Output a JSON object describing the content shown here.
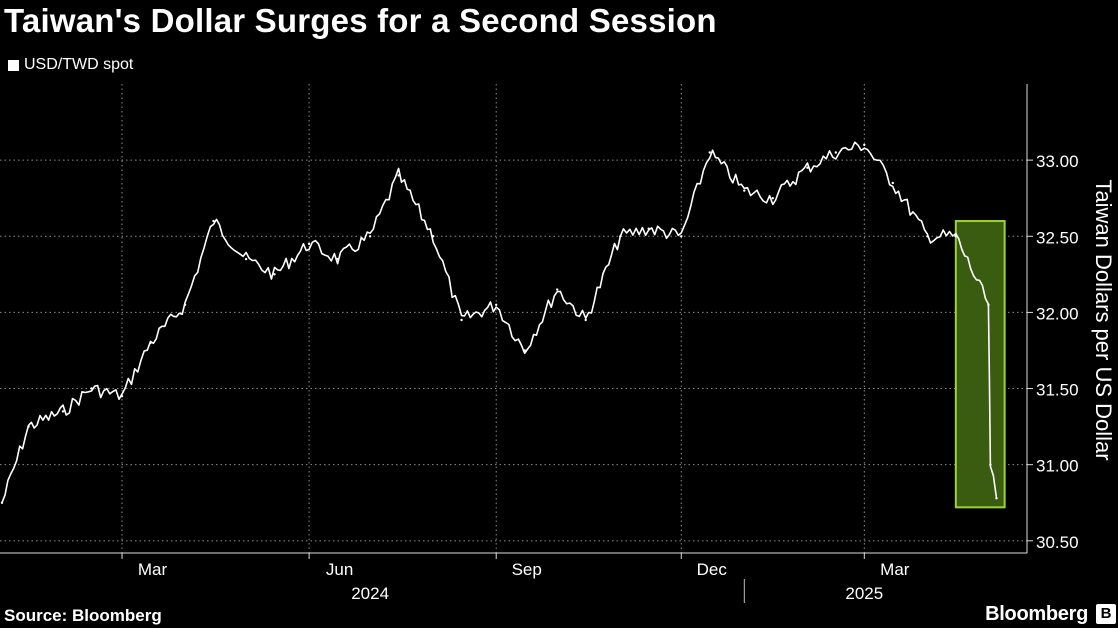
{
  "title": "Taiwan's Dollar Surges for a Second Session",
  "legend_label": "USD/TWD spot",
  "source": "Source: Bloomberg",
  "brand": "Bloomberg",
  "brand_mark": "B",
  "colors": {
    "background": "#000000",
    "series": "#ffffff",
    "grid": "#8c8c8c",
    "highlight_fill": "#3a5c10",
    "highlight_stroke": "#9bd337"
  },
  "chart_data": {
    "type": "line",
    "title": "Taiwan's Dollar Surges for a Second Session",
    "ylabel": "Taiwan Dollars per US Dollar",
    "ylim": [
      30.42,
      33.5
    ],
    "yticks": [
      "30.50",
      "31.00",
      "31.50",
      "32.00",
      "32.50",
      "33.00"
    ],
    "xtick_labels": [
      "Mar",
      "Jun",
      "Sep",
      "Dec",
      "Mar"
    ],
    "year_labels": [
      "2024",
      "2025"
    ],
    "grid": true,
    "legend_position": "top-left",
    "series": [
      {
        "name": "USD/TWD spot",
        "x": [
          "2024-01-02",
          "2024-01-15",
          "2024-02-01",
          "2024-02-15",
          "2024-03-01",
          "2024-03-15",
          "2024-04-01",
          "2024-04-15",
          "2024-05-01",
          "2024-05-15",
          "2024-06-01",
          "2024-06-15",
          "2024-07-01",
          "2024-07-15",
          "2024-08-01",
          "2024-08-15",
          "2024-09-01",
          "2024-09-15",
          "2024-10-01",
          "2024-10-15",
          "2024-11-01",
          "2024-11-15",
          "2024-12-01",
          "2024-12-15",
          "2025-01-01",
          "2025-01-15",
          "2025-02-01",
          "2025-02-15",
          "2025-03-01",
          "2025-03-15",
          "2025-04-01",
          "2025-04-15",
          "2025-05-01",
          "2025-05-02",
          "2025-05-05"
        ],
        "values": [
          30.75,
          31.25,
          31.35,
          31.5,
          31.45,
          31.8,
          32.05,
          32.6,
          32.35,
          32.25,
          32.45,
          32.35,
          32.5,
          32.9,
          32.5,
          31.95,
          32.05,
          31.75,
          32.15,
          31.95,
          32.5,
          32.55,
          32.5,
          33.05,
          32.8,
          32.75,
          32.95,
          33.05,
          33.1,
          32.85,
          32.5,
          32.5,
          32.05,
          31.0,
          30.78
        ]
      }
    ],
    "highlight": {
      "x_start": "2025-04-15",
      "x_end": "2025-05-09",
      "y_low": 30.72,
      "y_high": 32.6
    }
  }
}
